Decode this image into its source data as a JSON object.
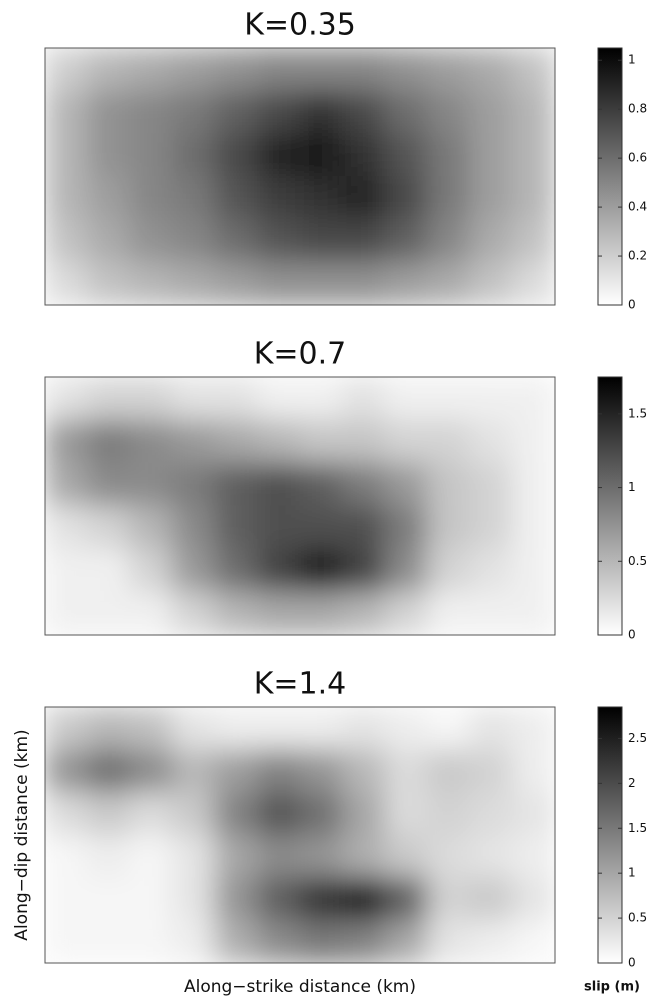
{
  "chart_data": [
    {
      "type": "heatmap",
      "title": "K=0.35",
      "colormap": "gray",
      "zlim": [
        0,
        1.05
      ],
      "zticks": [
        0,
        0.2,
        0.4,
        0.6,
        0.8,
        1
      ],
      "values": [
        [
          0.2,
          0.3,
          0.35,
          0.4,
          0.45,
          0.5,
          0.5,
          0.5,
          0.45,
          0.4,
          0.35,
          0.25
        ],
        [
          0.3,
          0.45,
          0.5,
          0.55,
          0.65,
          0.75,
          0.85,
          0.75,
          0.6,
          0.5,
          0.4,
          0.3
        ],
        [
          0.3,
          0.45,
          0.5,
          0.6,
          0.75,
          0.9,
          0.95,
          0.85,
          0.7,
          0.55,
          0.4,
          0.3
        ],
        [
          0.3,
          0.4,
          0.5,
          0.55,
          0.7,
          0.8,
          0.85,
          0.9,
          0.75,
          0.55,
          0.4,
          0.3
        ],
        [
          0.25,
          0.35,
          0.45,
          0.5,
          0.6,
          0.7,
          0.75,
          0.75,
          0.65,
          0.5,
          0.35,
          0.25
        ],
        [
          0.15,
          0.25,
          0.3,
          0.35,
          0.4,
          0.45,
          0.45,
          0.45,
          0.4,
          0.35,
          0.25,
          0.15
        ]
      ]
    },
    {
      "type": "heatmap",
      "title": "K=0.7",
      "colormap": "gray",
      "zlim": [
        0,
        1.75
      ],
      "zticks": [
        0,
        0.5,
        1,
        1.5
      ],
      "values": [
        [
          0.2,
          0.3,
          0.3,
          0.2,
          0.2,
          0.1,
          0.1,
          0.2,
          0.1,
          0.1,
          0.1,
          0.1
        ],
        [
          0.7,
          0.9,
          0.8,
          0.7,
          0.6,
          0.5,
          0.4,
          0.4,
          0.3,
          0.3,
          0.2,
          0.1
        ],
        [
          0.6,
          0.8,
          0.8,
          0.9,
          1.1,
          1.2,
          1.1,
          0.9,
          0.7,
          0.4,
          0.3,
          0.1
        ],
        [
          0.2,
          0.3,
          0.5,
          0.8,
          1.1,
          1.2,
          1.2,
          1.2,
          0.9,
          0.4,
          0.3,
          0.1
        ],
        [
          0.1,
          0.1,
          0.3,
          0.7,
          1.0,
          1.3,
          1.6,
          1.3,
          0.8,
          0.3,
          0.2,
          0.1
        ],
        [
          0.1,
          0.1,
          0.1,
          0.3,
          0.5,
          0.6,
          0.6,
          0.5,
          0.3,
          0.1,
          0.1,
          0.1
        ]
      ]
    },
    {
      "type": "heatmap",
      "title": "K=1.4",
      "colormap": "gray",
      "zlim": [
        0,
        2.85
      ],
      "zticks": [
        0,
        0.5,
        1,
        1.5,
        2,
        2.5
      ],
      "xlabel": "Along−strike distance (km)",
      "ylabel": "Along−dip distance (km)",
      "colorbar_label": "slip (m)",
      "values": [
        [
          0.6,
          0.8,
          0.7,
          0.3,
          0.2,
          0.2,
          0.2,
          0.3,
          0.2,
          0.1,
          0.3,
          0.2
        ],
        [
          1.2,
          1.6,
          1.3,
          0.8,
          1.1,
          1.4,
          1.2,
          0.8,
          0.4,
          0.6,
          0.5,
          0.2
        ],
        [
          0.4,
          0.6,
          0.4,
          0.6,
          1.4,
          1.9,
          1.6,
          1.0,
          0.4,
          0.5,
          0.4,
          0.3
        ],
        [
          0.1,
          0.2,
          0.1,
          0.3,
          1.0,
          1.3,
          1.2,
          0.9,
          0.6,
          0.4,
          0.3,
          0.2
        ],
        [
          0.1,
          0.1,
          0.1,
          0.3,
          1.2,
          1.8,
          2.3,
          2.6,
          1.8,
          0.5,
          0.6,
          0.3
        ],
        [
          0.1,
          0.1,
          0.1,
          0.2,
          0.9,
          1.3,
          1.5,
          1.4,
          1.0,
          0.3,
          0.2,
          0.1
        ]
      ]
    }
  ]
}
